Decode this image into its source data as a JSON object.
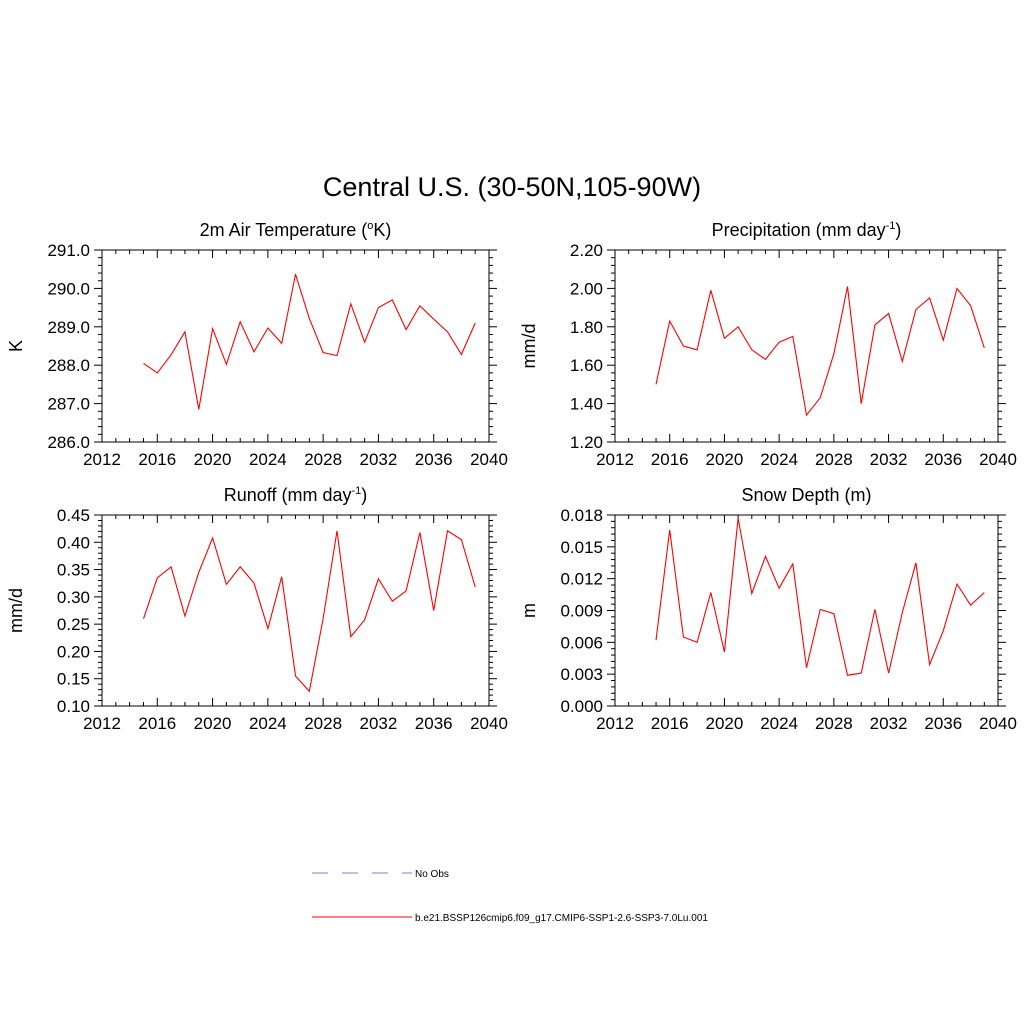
{
  "suptitle": "Central U.S. (30-50N,105-90W)",
  "colors": {
    "series": "#ff0000",
    "obs": "#9999dd",
    "axis": "#000000"
  },
  "legend": {
    "placement": "bottom-center",
    "entries": [
      {
        "label": "No Obs",
        "style": "dashed",
        "color": "#9999dd"
      },
      {
        "label": "b.e21.BSSP126cmip6.f09_g17.CMIP6-SSP1-2.6-SSP3-7.0Lu.001",
        "style": "solid",
        "color": "#ff0000"
      }
    ]
  },
  "chart_data": [
    {
      "type": "line",
      "title": "2m Air Temperature (",
      "title_sup": "o",
      "title_tail": "K)",
      "ylabel": "K",
      "xlim": [
        2012,
        2040
      ],
      "ylim": [
        286.0,
        291.0
      ],
      "xticks": [
        "2012",
        "2016",
        "2020",
        "2024",
        "2028",
        "2032",
        "2036",
        "2040"
      ],
      "yticks": [
        "286.0",
        "287.0",
        "288.0",
        "289.0",
        "290.0",
        "291.0"
      ],
      "grid": false,
      "x": [
        2015,
        2016,
        2017,
        2018,
        2019,
        2020,
        2021,
        2022,
        2023,
        2024,
        2025,
        2026,
        2027,
        2028,
        2029,
        2030,
        2031,
        2032,
        2033,
        2034,
        2035,
        2036,
        2037,
        2038,
        2039
      ],
      "values": [
        288.05,
        287.8,
        288.27,
        288.87,
        286.85,
        288.95,
        288.02,
        289.13,
        288.35,
        288.97,
        288.57,
        290.37,
        289.22,
        288.33,
        288.25,
        289.6,
        288.6,
        289.5,
        289.7,
        288.93,
        289.55,
        289.2,
        288.87,
        288.28,
        289.1
      ]
    },
    {
      "type": "line",
      "title": "Precipitation (mm day",
      "title_sup": "-1",
      "title_tail": ")",
      "ylabel": "mm/d",
      "xlim": [
        2012,
        2040
      ],
      "ylim": [
        1.2,
        2.2
      ],
      "xticks": [
        "2012",
        "2016",
        "2020",
        "2024",
        "2028",
        "2032",
        "2036",
        "2040"
      ],
      "yticks": [
        "1.20",
        "1.40",
        "1.60",
        "1.80",
        "2.00",
        "2.20"
      ],
      "grid": false,
      "x": [
        2015,
        2016,
        2017,
        2018,
        2019,
        2020,
        2021,
        2022,
        2023,
        2024,
        2025,
        2026,
        2027,
        2028,
        2029,
        2030,
        2031,
        2032,
        2033,
        2034,
        2035,
        2036,
        2037,
        2038,
        2039
      ],
      "values": [
        1.5,
        1.83,
        1.7,
        1.68,
        1.99,
        1.74,
        1.8,
        1.68,
        1.63,
        1.72,
        1.75,
        1.34,
        1.43,
        1.66,
        2.01,
        1.4,
        1.81,
        1.87,
        1.62,
        1.89,
        1.95,
        1.73,
        2.0,
        1.91,
        1.69
      ]
    },
    {
      "type": "line",
      "title": "Runoff (mm day",
      "title_sup": "-1",
      "title_tail": ")",
      "ylabel": "mm/d",
      "xlim": [
        2012,
        2040
      ],
      "ylim": [
        0.1,
        0.45
      ],
      "xticks": [
        "2012",
        "2016",
        "2020",
        "2024",
        "2028",
        "2032",
        "2036",
        "2040"
      ],
      "yticks": [
        "0.10",
        "0.15",
        "0.20",
        "0.25",
        "0.30",
        "0.35",
        "0.40",
        "0.45"
      ],
      "grid": false,
      "x": [
        2015,
        2016,
        2017,
        2018,
        2019,
        2020,
        2021,
        2022,
        2023,
        2024,
        2025,
        2026,
        2027,
        2028,
        2029,
        2030,
        2031,
        2032,
        2033,
        2034,
        2035,
        2036,
        2037,
        2038,
        2039
      ],
      "values": [
        0.26,
        0.335,
        0.355,
        0.265,
        0.345,
        0.408,
        0.323,
        0.355,
        0.325,
        0.242,
        0.337,
        0.155,
        0.127,
        0.26,
        0.421,
        0.227,
        0.258,
        0.333,
        0.292,
        0.311,
        0.418,
        0.275,
        0.421,
        0.405,
        0.318
      ]
    },
    {
      "type": "line",
      "title": "Snow Depth (m)",
      "title_sup": "",
      "title_tail": "",
      "ylabel": "m",
      "xlim": [
        2012,
        2040
      ],
      "ylim": [
        0.0,
        0.018
      ],
      "xticks": [
        "2012",
        "2016",
        "2020",
        "2024",
        "2028",
        "2032",
        "2036",
        "2040"
      ],
      "yticks": [
        "0.000",
        "0.003",
        "0.006",
        "0.009",
        "0.012",
        "0.015",
        "0.018"
      ],
      "grid": false,
      "x": [
        2015,
        2016,
        2017,
        2018,
        2019,
        2020,
        2021,
        2022,
        2023,
        2024,
        2025,
        2026,
        2027,
        2028,
        2029,
        2030,
        2031,
        2032,
        2033,
        2034,
        2035,
        2036,
        2037,
        2038,
        2039
      ],
      "values": [
        0.0062,
        0.0166,
        0.0065,
        0.006,
        0.0107,
        0.0051,
        0.0177,
        0.0106,
        0.0141,
        0.0111,
        0.0134,
        0.0036,
        0.0091,
        0.0087,
        0.0029,
        0.0031,
        0.0091,
        0.0031,
        0.0088,
        0.0135,
        0.0039,
        0.0071,
        0.0115,
        0.0095,
        0.0107
      ]
    }
  ]
}
